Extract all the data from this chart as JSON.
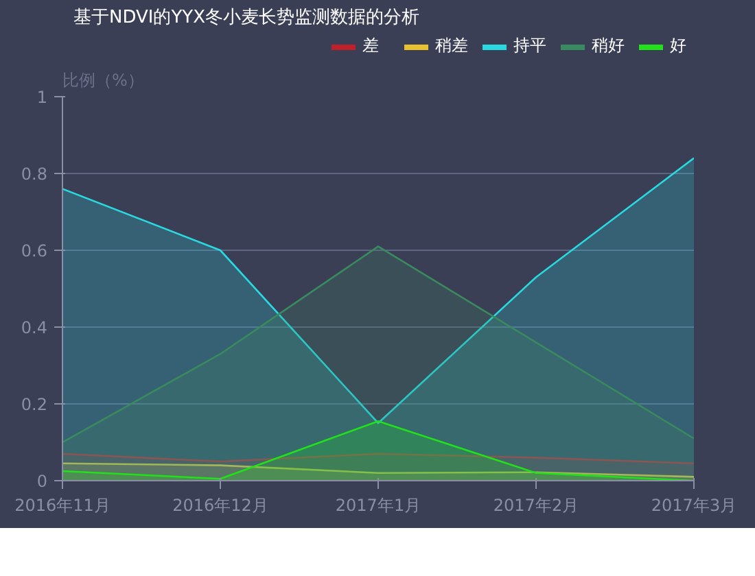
{
  "chart_data": {
    "type": "area",
    "title": "基于NDVI的YYX冬小麦长势监测数据的分析",
    "ylabel": "比例（%）",
    "categories": [
      "2016年11月",
      "2016年12月",
      "2017年1月",
      "2017年2月",
      "2017年3月"
    ],
    "ylim": [
      0,
      1
    ],
    "yticks": [
      0,
      0.2,
      0.4,
      0.6,
      0.8,
      1
    ],
    "grid": "y",
    "legend": "top right",
    "marker": "none",
    "line_style": "solid",
    "series": [
      {
        "name": "差",
        "color": "#c0202a",
        "values": [
          0.07,
          0.05,
          0.07,
          0.06,
          0.045
        ]
      },
      {
        "name": "稍差",
        "color": "#e8c030",
        "values": [
          0.045,
          0.04,
          0.02,
          0.022,
          0.01
        ]
      },
      {
        "name": "持平",
        "color": "#2ad8e0",
        "values": [
          0.76,
          0.6,
          0.15,
          0.53,
          0.84
        ]
      },
      {
        "name": "稍好",
        "color": "#3a8a5f",
        "values": [
          0.1,
          0.33,
          0.61,
          0.36,
          0.11
        ]
      },
      {
        "name": "好",
        "color": "#22e01a",
        "values": [
          0.025,
          0.005,
          0.155,
          0.02,
          0.0
        ]
      }
    ]
  }
}
